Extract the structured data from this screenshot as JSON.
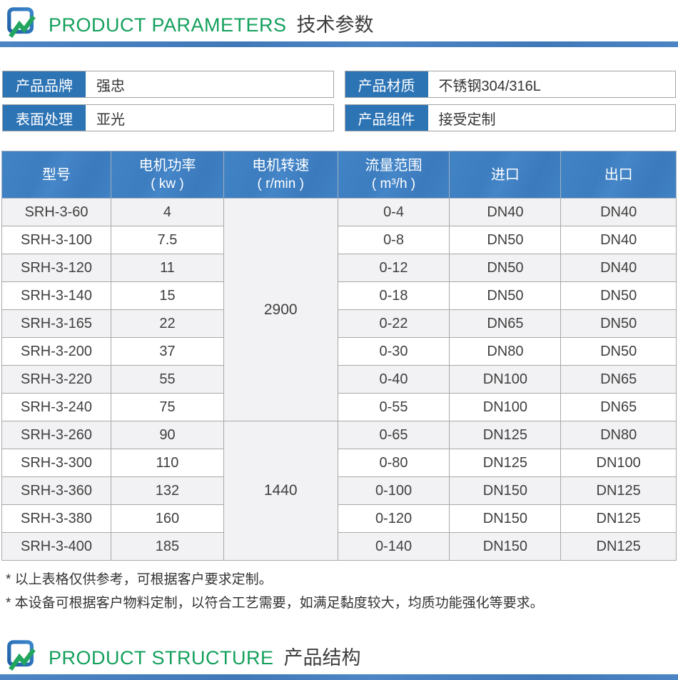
{
  "colors": {
    "accent_green": "#14a05c",
    "divider_blue": "#4a80bf",
    "label_blue": "#2d74b5",
    "table_header_blue": "#3e80c2",
    "row_alt_gray": "#f2f2f4"
  },
  "sections": {
    "parameters": {
      "title_en": "PRODUCT PARAMETERS",
      "title_cn": "技术参数"
    },
    "structure": {
      "title_en": "PRODUCT STRUCTURE",
      "title_cn": "产品结构"
    }
  },
  "info_boxes": [
    {
      "label": "产品品牌",
      "value": "强忠"
    },
    {
      "label": "产品材质",
      "value": "不锈钢304/316L"
    },
    {
      "label": "表面处理",
      "value": "亚光"
    },
    {
      "label": "产品组件",
      "value": "接受定制"
    }
  ],
  "table": {
    "columns": [
      {
        "label": "型号",
        "unit": ""
      },
      {
        "label": "电机功率",
        "unit": "( kw )"
      },
      {
        "label": "电机转速",
        "unit": "( r/min )"
      },
      {
        "label": "流量范围",
        "unit": "( m³/h )"
      },
      {
        "label": "进口",
        "unit": ""
      },
      {
        "label": "出口",
        "unit": ""
      }
    ],
    "speed_groups": [
      {
        "value": "2900",
        "start": 0,
        "span": 8
      },
      {
        "value": "1440",
        "start": 8,
        "span": 5
      }
    ],
    "rows": [
      {
        "model": "SRH-3-60",
        "power": "4",
        "flow": "0-4",
        "inlet": "DN40",
        "outlet": "DN40"
      },
      {
        "model": "SRH-3-100",
        "power": "7.5",
        "flow": "0-8",
        "inlet": "DN50",
        "outlet": "DN40"
      },
      {
        "model": "SRH-3-120",
        "power": "11",
        "flow": "0-12",
        "inlet": "DN50",
        "outlet": "DN40"
      },
      {
        "model": "SRH-3-140",
        "power": "15",
        "flow": "0-18",
        "inlet": "DN50",
        "outlet": "DN50"
      },
      {
        "model": "SRH-3-165",
        "power": "22",
        "flow": "0-22",
        "inlet": "DN65",
        "outlet": "DN50"
      },
      {
        "model": "SRH-3-200",
        "power": "37",
        "flow": "0-30",
        "inlet": "DN80",
        "outlet": "DN50"
      },
      {
        "model": "SRH-3-220",
        "power": "55",
        "flow": "0-40",
        "inlet": "DN100",
        "outlet": "DN65"
      },
      {
        "model": "SRH-3-240",
        "power": "75",
        "flow": "0-55",
        "inlet": "DN100",
        "outlet": "DN65"
      },
      {
        "model": "SRH-3-260",
        "power": "90",
        "flow": "0-65",
        "inlet": "DN125",
        "outlet": "DN80"
      },
      {
        "model": "SRH-3-300",
        "power": "110",
        "flow": "0-80",
        "inlet": "DN125",
        "outlet": "DN100"
      },
      {
        "model": "SRH-3-360",
        "power": "132",
        "flow": "0-100",
        "inlet": "DN150",
        "outlet": "DN125"
      },
      {
        "model": "SRH-3-380",
        "power": "160",
        "flow": "0-120",
        "inlet": "DN150",
        "outlet": "DN125"
      },
      {
        "model": "SRH-3-400",
        "power": "185",
        "flow": "0-140",
        "inlet": "DN150",
        "outlet": "DN125"
      }
    ]
  },
  "notes": [
    "* 以上表格仅供参考，可根据客户要求定制。",
    "* 本设备可根据客户物料定制，以符合工艺需要，如满足黏度较大，均质功能强化等要求。"
  ]
}
